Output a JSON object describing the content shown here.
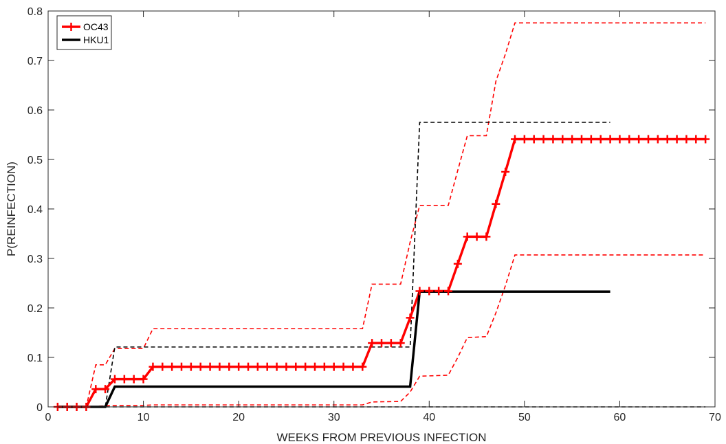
{
  "chart_data": {
    "type": "line",
    "xlabel": "WEEKS FROM PREVIOUS INFECTION",
    "ylabel": "P(REINFECTION)",
    "xlim": [
      0,
      70
    ],
    "ylim": [
      0,
      0.8
    ],
    "xticks": [
      0,
      10,
      20,
      30,
      40,
      50,
      60,
      70
    ],
    "yticks": [
      0,
      0.1,
      0.2,
      0.3,
      0.4,
      0.5,
      0.6,
      0.7,
      0.8
    ],
    "xtick_labels": [
      "0",
      "10",
      "20",
      "30",
      "40",
      "50",
      "60",
      "70"
    ],
    "ytick_labels": [
      "0",
      "0.1",
      "0.2",
      "0.3",
      "0.4",
      "0.5",
      "0.6",
      "0.7",
      "0.8"
    ],
    "grid": false,
    "legend_position": "top-left",
    "colors": {
      "OC43": "#ff0000",
      "HKU1": "#000000"
    },
    "series": [
      {
        "name": "OC43",
        "style": "solid-plus-markers",
        "points": [
          [
            1,
            0
          ],
          [
            2,
            0
          ],
          [
            3,
            0
          ],
          [
            4,
            0
          ],
          [
            5,
            0.036
          ],
          [
            6,
            0.036
          ],
          [
            7,
            0.056
          ],
          [
            8,
            0.056
          ],
          [
            9,
            0.056
          ],
          [
            10,
            0.056
          ],
          [
            11,
            0.081
          ],
          [
            12,
            0.081
          ],
          [
            13,
            0.081
          ],
          [
            14,
            0.081
          ],
          [
            15,
            0.081
          ],
          [
            16,
            0.081
          ],
          [
            17,
            0.081
          ],
          [
            18,
            0.081
          ],
          [
            19,
            0.081
          ],
          [
            20,
            0.081
          ],
          [
            21,
            0.081
          ],
          [
            22,
            0.081
          ],
          [
            23,
            0.081
          ],
          [
            24,
            0.081
          ],
          [
            25,
            0.081
          ],
          [
            26,
            0.081
          ],
          [
            27,
            0.081
          ],
          [
            28,
            0.081
          ],
          [
            29,
            0.081
          ],
          [
            30,
            0.081
          ],
          [
            31,
            0.081
          ],
          [
            32,
            0.081
          ],
          [
            33,
            0.081
          ],
          [
            34,
            0.129
          ],
          [
            35,
            0.129
          ],
          [
            36,
            0.129
          ],
          [
            37,
            0.129
          ],
          [
            38,
            0.18
          ],
          [
            39,
            0.234
          ],
          [
            40,
            0.234
          ],
          [
            41,
            0.234
          ],
          [
            42,
            0.234
          ],
          [
            43,
            0.289
          ],
          [
            44,
            0.344
          ],
          [
            45,
            0.344
          ],
          [
            46,
            0.344
          ],
          [
            47,
            0.41
          ],
          [
            48,
            0.475
          ],
          [
            49,
            0.541
          ],
          [
            50,
            0.541
          ],
          [
            51,
            0.541
          ],
          [
            52,
            0.541
          ],
          [
            53,
            0.541
          ],
          [
            54,
            0.541
          ],
          [
            55,
            0.541
          ],
          [
            56,
            0.541
          ],
          [
            57,
            0.541
          ],
          [
            58,
            0.541
          ],
          [
            59,
            0.541
          ],
          [
            60,
            0.541
          ],
          [
            61,
            0.541
          ],
          [
            62,
            0.541
          ],
          [
            63,
            0.541
          ],
          [
            64,
            0.541
          ],
          [
            65,
            0.541
          ],
          [
            66,
            0.541
          ],
          [
            67,
            0.541
          ],
          [
            68,
            0.541
          ],
          [
            69,
            0.541
          ]
        ]
      },
      {
        "name": "HKU1",
        "style": "solid",
        "points": [
          [
            1,
            0
          ],
          [
            6,
            0
          ],
          [
            7,
            0.041
          ],
          [
            38,
            0.041
          ],
          [
            39,
            0.233
          ],
          [
            59,
            0.233
          ]
        ]
      },
      {
        "style": "dashed",
        "color": "#ff0000",
        "points": [
          [
            1,
            0
          ],
          [
            4,
            0
          ],
          [
            5,
            0.085
          ],
          [
            6,
            0.085
          ],
          [
            7,
            0.118
          ],
          [
            10,
            0.118
          ],
          [
            11,
            0.158
          ],
          [
            33,
            0.158
          ],
          [
            34,
            0.248
          ],
          [
            37,
            0.248
          ],
          [
            38,
            0.333
          ],
          [
            39,
            0.407
          ],
          [
            42,
            0.407
          ],
          [
            43,
            0.478
          ],
          [
            44,
            0.548
          ],
          [
            46,
            0.548
          ],
          [
            47,
            0.658
          ],
          [
            48,
            0.713
          ],
          [
            49,
            0.776
          ],
          [
            69,
            0.776
          ]
        ]
      },
      {
        "style": "dashed",
        "color": "#ff0000",
        "points": [
          [
            1,
            0
          ],
          [
            4,
            0
          ],
          [
            5,
            0.001
          ],
          [
            6,
            0.002
          ],
          [
            7,
            0.003
          ],
          [
            10,
            0.003
          ],
          [
            11,
            0.004
          ],
          [
            33,
            0.004
          ],
          [
            34,
            0.01
          ],
          [
            37,
            0.011
          ],
          [
            38,
            0.03
          ],
          [
            39,
            0.062
          ],
          [
            42,
            0.064
          ],
          [
            43,
            0.1
          ],
          [
            44,
            0.14
          ],
          [
            46,
            0.142
          ],
          [
            47,
            0.19
          ],
          [
            48,
            0.245
          ],
          [
            49,
            0.307
          ],
          [
            69,
            0.307
          ]
        ]
      },
      {
        "style": "dashed",
        "color": "#000000",
        "points": [
          [
            1,
            0
          ],
          [
            6,
            0
          ],
          [
            7,
            0.121
          ],
          [
            38,
            0.121
          ],
          [
            39,
            0.575
          ],
          [
            59,
            0.575
          ]
        ]
      },
      {
        "style": "dashed",
        "color": "#000000",
        "points": [
          [
            1,
            0
          ],
          [
            69,
            0
          ]
        ]
      }
    ]
  }
}
